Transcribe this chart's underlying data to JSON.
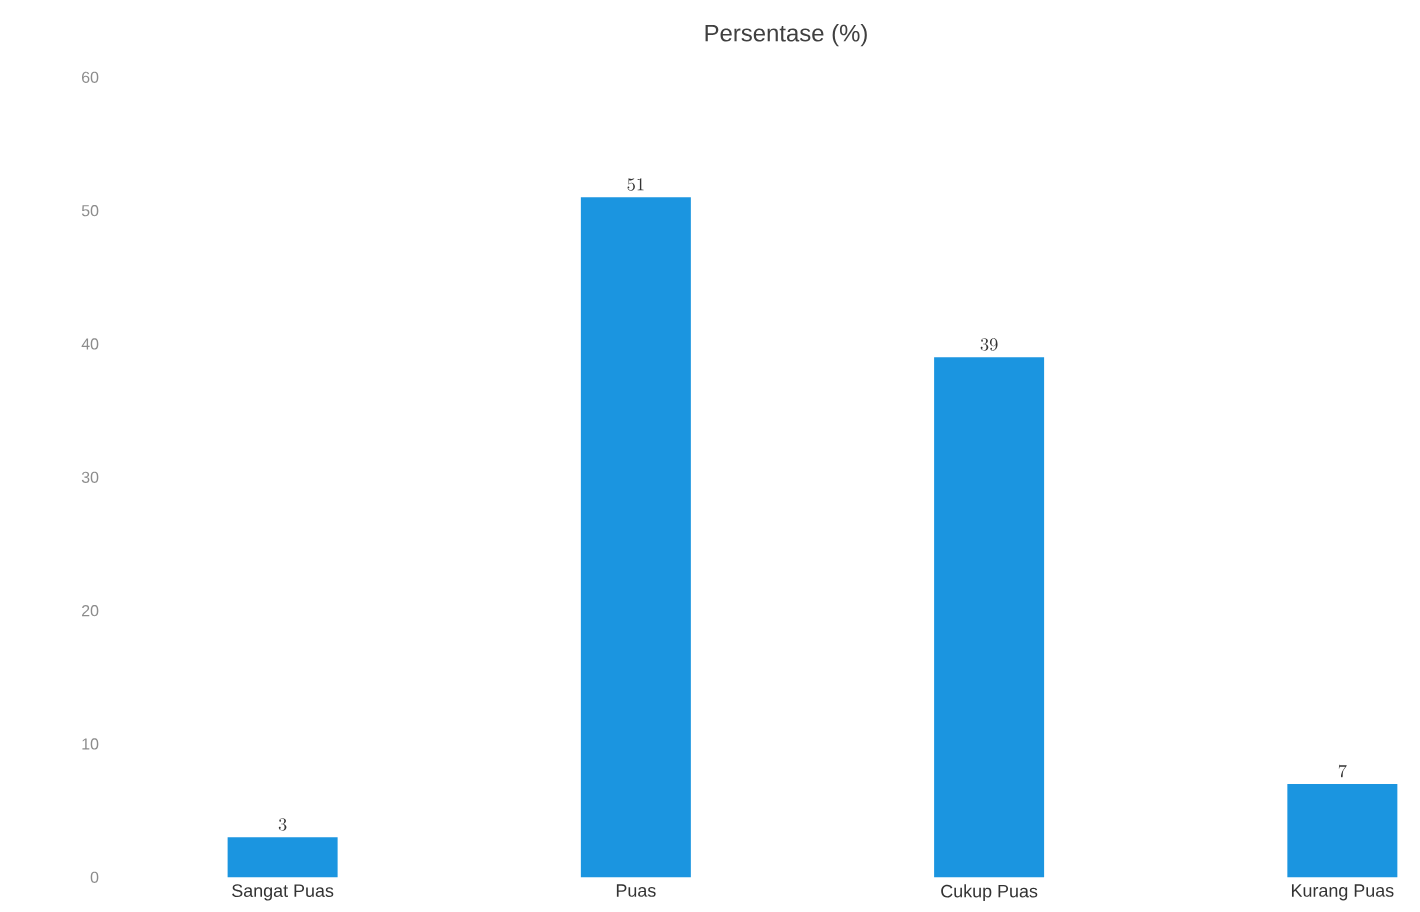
{
  "chart_data": {
    "type": "bar",
    "title": "Persentase (%)",
    "categories": [
      "Sangat Puas",
      "Puas",
      "Cukup Puas",
      "Kurang Puas"
    ],
    "values": [
      3,
      51,
      39,
      7
    ],
    "color": "#1b95e0",
    "ylim": [
      0,
      60
    ],
    "yticks": [
      0,
      10,
      20,
      30,
      40,
      50,
      60
    ],
    "grid": false,
    "data_labels": true
  }
}
